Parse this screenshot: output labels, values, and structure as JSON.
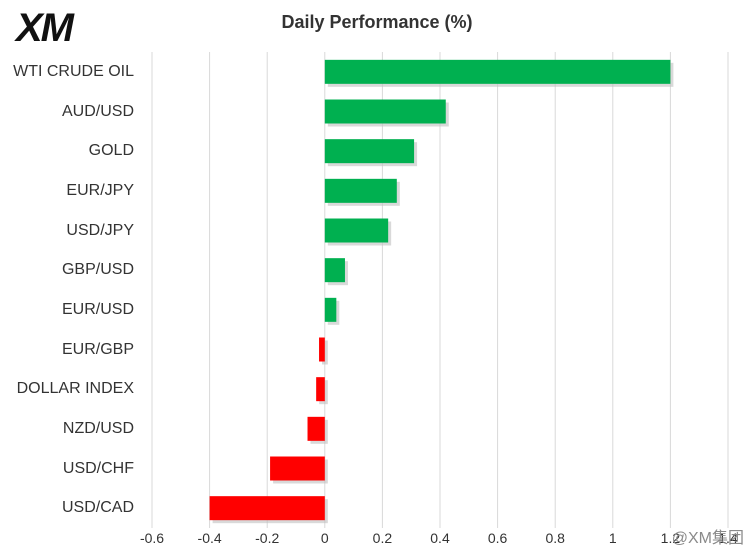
{
  "logo": {
    "text": "XM"
  },
  "chart_data": {
    "type": "bar",
    "orientation": "horizontal",
    "title": "Daily Performance (%)",
    "categories": [
      "WTI CRUDE OIL",
      "AUD/USD",
      "GOLD",
      "EUR/JPY",
      "USD/JPY",
      "GBP/USD",
      "EUR/USD",
      "EUR/GBP",
      "DOLLAR INDEX",
      "NZD/USD",
      "USD/CHF",
      "USD/CAD"
    ],
    "values": [
      1.2,
      0.42,
      0.31,
      0.25,
      0.22,
      0.07,
      0.04,
      -0.02,
      -0.03,
      -0.06,
      -0.19,
      -0.4
    ],
    "xlim": [
      -0.6,
      1.4
    ],
    "xticks": [
      "-0.6",
      "-0.4",
      "-0.2",
      "0",
      "0.2",
      "0.4",
      "0.6",
      "0.8",
      "1",
      "1.2",
      "1.4"
    ],
    "xtick_values": [
      -0.6,
      -0.4,
      -0.2,
      0,
      0.2,
      0.4,
      0.6,
      0.8,
      1.0,
      1.2,
      1.4
    ],
    "grid": "vertical",
    "colors": {
      "positive": "#00b050",
      "negative": "#ff0000",
      "grid": "#d9d9d9",
      "text": "#333333"
    }
  },
  "watermark": {
    "text": "@XM集团"
  }
}
